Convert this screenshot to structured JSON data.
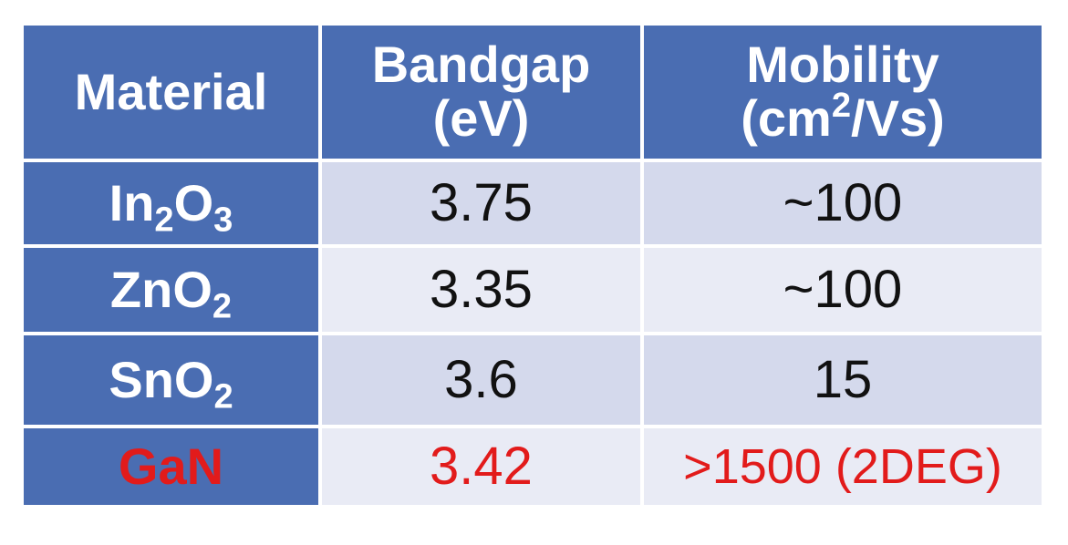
{
  "table": {
    "headers": {
      "material": "Material",
      "bandgap": {
        "line1": "Bandgap",
        "line2": "(eV)"
      },
      "mobility": {
        "line1": "Mobility",
        "line2_pre": "(cm",
        "line2_sup": "2",
        "line2_post": "/Vs)"
      }
    },
    "rows": [
      {
        "material": {
          "base1": "In",
          "sub1": "2",
          "base2": "O",
          "sub2": "3"
        },
        "bandgap": "3.75",
        "mobility": "~100"
      },
      {
        "material": {
          "base1": "ZnO",
          "sub1": "2"
        },
        "bandgap": "3.35",
        "mobility": "~100"
      },
      {
        "material": {
          "base1": "SnO",
          "sub1": "2"
        },
        "bandgap": "3.6",
        "mobility": "15"
      },
      {
        "material": {
          "base1": "GaN"
        },
        "bandgap": "3.42",
        "mobility": ">1500 (2DEG)",
        "highlight": true
      }
    ]
  },
  "colors": {
    "header_bg": "#4a6db2",
    "row_odd_bg": "#d4d9ec",
    "row_even_bg": "#e9ebf5",
    "highlight_text": "#e21b1b"
  }
}
